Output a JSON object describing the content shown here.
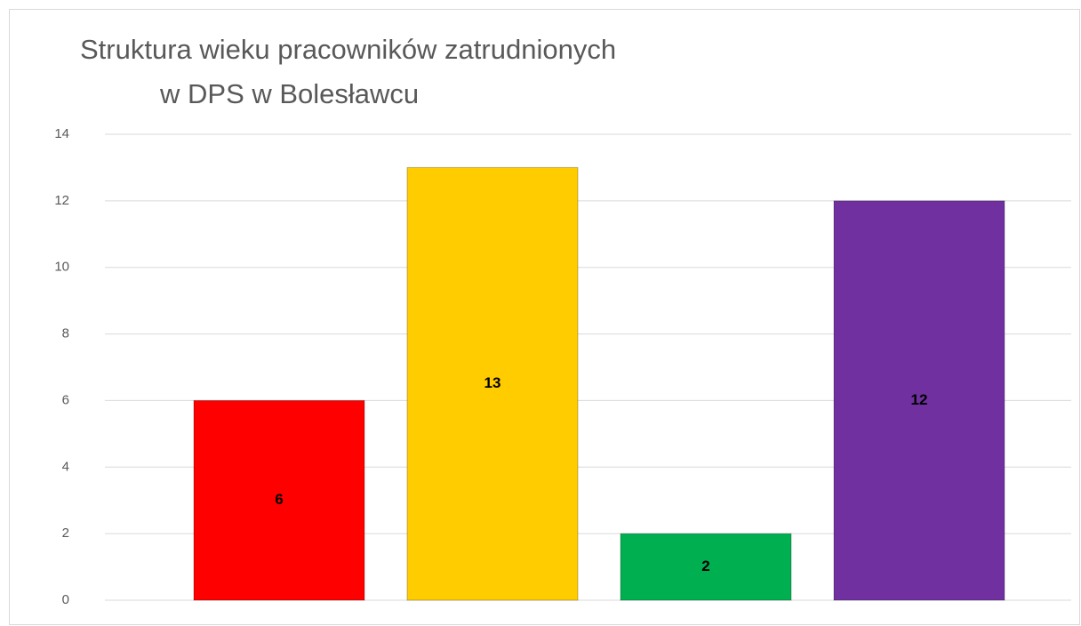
{
  "chart_data": {
    "type": "bar",
    "title": [
      "Struktura wieku pracowników zatrudnionych",
      "w DPS w Bolesławcu"
    ],
    "categories": [
      null,
      null,
      null,
      null
    ],
    "values": [
      6,
      13,
      2,
      12
    ],
    "colors": [
      "#ff0000",
      "#ffcc00",
      "#00b050",
      "#7030a0"
    ],
    "ylim": [
      0,
      14
    ],
    "yticks": [
      0,
      2,
      4,
      6,
      8,
      10,
      12,
      14
    ],
    "grid": true
  }
}
